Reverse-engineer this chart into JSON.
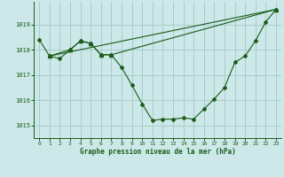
{
  "xlabel": "Graphe pression niveau de la mer (hPa)",
  "background_color": "#cce8e8",
  "grid_color": "#aacccc",
  "line_color": "#1a5c1a",
  "xlim": [
    -0.5,
    23.5
  ],
  "ylim": [
    1014.5,
    1019.9
  ],
  "yticks": [
    1015,
    1016,
    1017,
    1018,
    1019
  ],
  "xticks": [
    0,
    1,
    2,
    3,
    4,
    5,
    6,
    7,
    8,
    9,
    10,
    11,
    12,
    13,
    14,
    15,
    16,
    17,
    18,
    19,
    20,
    21,
    22,
    23
  ],
  "series1_x": [
    0,
    1,
    2,
    3,
    4,
    5,
    6,
    7,
    8,
    9,
    10,
    11,
    12,
    13,
    14,
    15,
    16,
    17,
    18,
    19,
    20,
    21,
    22,
    23
  ],
  "series1_y": [
    1018.4,
    1017.75,
    1017.65,
    1018.0,
    1018.35,
    1018.25,
    1017.8,
    1017.8,
    1017.3,
    1016.6,
    1015.85,
    1015.2,
    1015.25,
    1015.25,
    1015.3,
    1015.25,
    1015.65,
    1016.05,
    1016.5,
    1017.5,
    1017.75,
    1018.35,
    1019.1,
    1019.6
  ],
  "series2_x": [
    1,
    3,
    4,
    5,
    6,
    7,
    23
  ],
  "series2_y": [
    1017.75,
    1018.0,
    1018.35,
    1018.25,
    1017.8,
    1017.8,
    1019.6
  ],
  "series3_x": [
    1,
    23
  ],
  "series3_y": [
    1017.75,
    1019.6
  ]
}
